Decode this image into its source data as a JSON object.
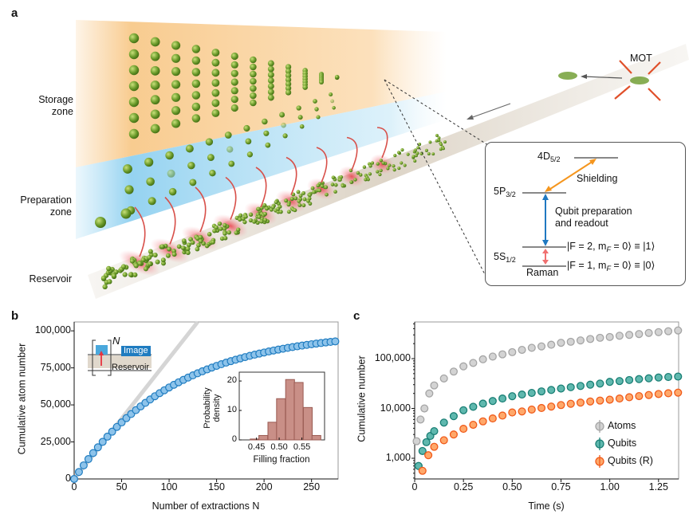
{
  "panel_a": {
    "letter": "a",
    "zones": {
      "storage": "Storage zone",
      "preparation": "Preparation zone",
      "reservoir": "Reservoir"
    },
    "mot_label": "MOT",
    "colors": {
      "storage": "#f8c98a",
      "preparation": "#9fd8f3",
      "atoms": "#6a9a2a",
      "beam": "#e8343f"
    },
    "level_diagram": {
      "levels": [
        {
          "main": "4D",
          "sub": "5/2"
        },
        {
          "main": "5P",
          "sub": "3/2"
        },
        {
          "main": "5S",
          "sub": "1/2"
        }
      ],
      "transitions": {
        "shielding": "Shielding",
        "prep_line1": "Qubit preparation",
        "prep_line2": "and readout",
        "raman": "Raman"
      },
      "states": [
        {
          "pre": "|F = 2, m",
          "sub": "F",
          "post": " = 0⟩ ≡ |1⟩"
        },
        {
          "pre": "|F = 1, m",
          "sub": "F",
          "post": " = 0⟩ ≡ |0⟩"
        }
      ],
      "colors": {
        "shielding": "#f5961e",
        "prep": "#1f78c1",
        "raman": "#f07070"
      }
    }
  },
  "chart_data": [
    {
      "panel": "b",
      "type": "scatter",
      "xlabel": "Number of extractions N",
      "ylabel": "Cumulative atom number",
      "xlim": [
        0,
        278
      ],
      "ylim": [
        0,
        106000
      ],
      "xticks": [
        0,
        50,
        100,
        150,
        200,
        250
      ],
      "xtick_labels": [
        "0",
        "50",
        "100",
        "150",
        "200",
        "250"
      ],
      "yticks": [
        0,
        25000,
        50000,
        75000,
        100000
      ],
      "ytick_labels": [
        "0",
        "25,000",
        "50,000",
        "75,000",
        "100,000"
      ],
      "linear_reference_slope": 815,
      "color": "#1f7cc0",
      "x": [
        0,
        5,
        10,
        15,
        20,
        25,
        30,
        35,
        40,
        45,
        50,
        55,
        60,
        65,
        70,
        75,
        80,
        85,
        90,
        95,
        100,
        105,
        110,
        115,
        120,
        125,
        130,
        135,
        140,
        145,
        150,
        155,
        160,
        165,
        170,
        175,
        180,
        185,
        190,
        195,
        200,
        205,
        210,
        215,
        220,
        225,
        230,
        235,
        240,
        245,
        250,
        255,
        260,
        265,
        270,
        275
      ],
      "y": [
        0,
        4700,
        9170,
        13430,
        17490,
        21370,
        25060,
        28570,
        31930,
        35120,
        38170,
        41070,
        43840,
        46470,
        48990,
        51380,
        53660,
        55840,
        57910,
        59890,
        61770,
        63560,
        65270,
        66900,
        68460,
        69940,
        71350,
        72690,
        73970,
        75200,
        76360,
        77470,
        78530,
        79540,
        80500,
        81410,
        82290,
        83120,
        83910,
        84660,
        85380,
        86070,
        86720,
        87350,
        87940,
        88510,
        89050,
        89560,
        90050,
        90520,
        90960,
        91390,
        91790,
        92180,
        92540,
        92890
      ],
      "schematic": {
        "n_label": "N",
        "image_label": "Image",
        "reservoir_label": "Reservoir"
      },
      "inset": {
        "type": "bar",
        "xlabel": "Filling fraction",
        "ylabel": "Probability density",
        "xlim": [
          0.412,
          0.6
        ],
        "ylim": [
          0,
          23
        ],
        "xticks": [
          0.45,
          0.5,
          0.55
        ],
        "xtick_labels": [
          "0.45",
          "0.50",
          "0.55"
        ],
        "yticks": [
          0,
          10,
          20
        ],
        "ytick_labels": [
          "0",
          "10",
          "20"
        ],
        "bin_width": 0.0195,
        "bin_centers": [
          0.446,
          0.465,
          0.485,
          0.504,
          0.524,
          0.543,
          0.563,
          0.582
        ],
        "values": [
          0.3,
          1.5,
          6,
          14,
          20.5,
          19.5,
          11,
          1.5
        ],
        "color": "#c98f87"
      }
    },
    {
      "panel": "c",
      "type": "scatter",
      "xlabel": "Time (s)",
      "ylabel": "Cumulative number",
      "yscale": "log",
      "xlim": [
        0,
        1.353
      ],
      "ylim": [
        384,
        545000
      ],
      "xticks": [
        0,
        0.25,
        0.5,
        0.75,
        1.0,
        1.25
      ],
      "xtick_labels": [
        "0",
        "0.25",
        "0.50",
        "0.75",
        "1.00",
        "1.25"
      ],
      "yticks": [
        1000,
        10000,
        100000
      ],
      "ytick_labels": [
        "1,000",
        "10,000",
        "100,000"
      ],
      "legend": "bottom-right",
      "series": [
        {
          "name": "Atoms",
          "color": "#a5a5a5",
          "fill": "#d3d3d3",
          "x": [
            0.01,
            0.03,
            0.05,
            0.075,
            0.1,
            0.15,
            0.2,
            0.25,
            0.3,
            0.35,
            0.4,
            0.45,
            0.5,
            0.55,
            0.6,
            0.65,
            0.7,
            0.75,
            0.8,
            0.85,
            0.9,
            0.95,
            1.0,
            1.05,
            1.1,
            1.15,
            1.2,
            1.25,
            1.3,
            1.35
          ],
          "y": [
            2200,
            6000,
            10000,
            20000,
            29000,
            40000,
            55000,
            70000,
            82000,
            97000,
            110000,
            122000,
            135000,
            150000,
            165000,
            176000,
            190000,
            208000,
            218000,
            232000,
            248000,
            262000,
            272000,
            288000,
            300000,
            312000,
            328000,
            340000,
            355000,
            368000
          ]
        },
        {
          "name": "Qubits",
          "color": "#1a7f75",
          "fill": "#5fb8ae",
          "x": [
            0.02,
            0.04,
            0.06,
            0.08,
            0.1,
            0.15,
            0.2,
            0.25,
            0.3,
            0.35,
            0.4,
            0.45,
            0.5,
            0.55,
            0.6,
            0.65,
            0.7,
            0.75,
            0.8,
            0.85,
            0.9,
            0.95,
            1.0,
            1.05,
            1.1,
            1.15,
            1.2,
            1.25,
            1.3,
            1.35
          ],
          "y": [
            700,
            1400,
            2100,
            2800,
            3500,
            5200,
            7000,
            9200,
            10800,
            12500,
            14100,
            15800,
            17600,
            19000,
            20500,
            22000,
            23500,
            25100,
            26700,
            28300,
            30000,
            31600,
            34100,
            35500,
            37200,
            38800,
            40300,
            41800,
            42800,
            43700
          ]
        },
        {
          "name": "Qubits (R)",
          "color": "#f05a1a",
          "fill": "#ffa86a",
          "x": [
            0.04,
            0.07,
            0.1,
            0.15,
            0.2,
            0.25,
            0.3,
            0.35,
            0.4,
            0.45,
            0.5,
            0.55,
            0.6,
            0.65,
            0.7,
            0.75,
            0.8,
            0.85,
            0.9,
            0.95,
            1.0,
            1.05,
            1.1,
            1.15,
            1.2,
            1.25,
            1.3,
            1.35
          ],
          "y": [
            560,
            1150,
            1700,
            2300,
            3000,
            3900,
            4700,
            5500,
            6300,
            7200,
            8300,
            8700,
            9500,
            10200,
            10900,
            11700,
            12400,
            13100,
            13800,
            14400,
            15000,
            15800,
            16800,
            17700,
            18600,
            19500,
            20200,
            20800
          ]
        }
      ]
    }
  ]
}
